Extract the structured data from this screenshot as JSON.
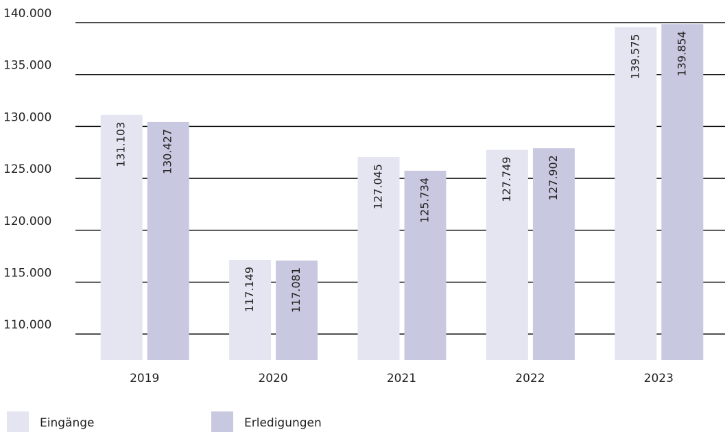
{
  "chart_data": {
    "type": "bar",
    "categories": [
      "2019",
      "2020",
      "2021",
      "2022",
      "2023"
    ],
    "series": [
      {
        "name": "Eingänge",
        "color": "#e4e5f1",
        "values": [
          131103,
          117149,
          127045,
          127749,
          139575
        ],
        "value_labels": [
          "131.103",
          "117.149",
          "127.045",
          "127.749",
          "139.575"
        ]
      },
      {
        "name": "Erledigungen",
        "color": "#c8c9e0",
        "values": [
          130427,
          117081,
          125734,
          127902,
          139854
        ],
        "value_labels": [
          "130.427",
          "117.081",
          "125.734",
          "127.902",
          "139.854"
        ]
      }
    ],
    "ylim": [
      107500,
      140000
    ],
    "yticks": [
      {
        "value": 110000,
        "label": "110.000"
      },
      {
        "value": 115000,
        "label": "115.000"
      },
      {
        "value": 120000,
        "label": "120.000"
      },
      {
        "value": 125000,
        "label": "125.000"
      },
      {
        "value": 130000,
        "label": "130.000"
      },
      {
        "value": 135000,
        "label": "135.000"
      },
      {
        "value": 140000,
        "label": "140.000"
      }
    ],
    "grid": true
  }
}
